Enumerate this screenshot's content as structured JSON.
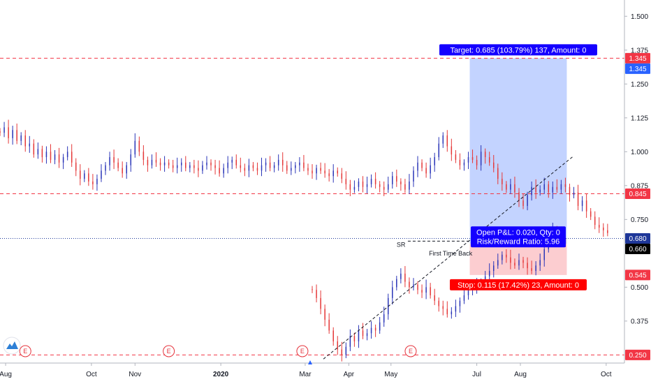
{
  "chart_data": {
    "type": "candlestick",
    "y_axis": {
      "ticks": [
        "1.500",
        "1.375",
        "1.250",
        "1.125",
        "1.000",
        "0.875",
        "0.750",
        "0.500",
        "0.375"
      ],
      "range": [
        0.22,
        1.56
      ]
    },
    "x_axis": {
      "ticks": [
        "Aug",
        "Oct",
        "Nov",
        "2020",
        "Mar",
        "Apr",
        "May",
        "Jul",
        "Aug",
        "Oct"
      ],
      "range": [
        "2019-07-28",
        "2020-10-14"
      ]
    },
    "price_lines": [
      {
        "value": 1.345,
        "label": "1.345",
        "style": "dashed",
        "color": "#f23645"
      },
      {
        "value": 0.845,
        "label": "0.845",
        "style": "dashed",
        "color": "#f23645"
      },
      {
        "value": 0.25,
        "label": "0.250",
        "style": "dashed",
        "color": "#f23645"
      },
      {
        "value": 0.68,
        "label": "0.680",
        "style": "dotted",
        "color": "#1e3799"
      }
    ],
    "last_price_tags": [
      {
        "value": 1.345,
        "label": "1.345",
        "color": "#2962ff"
      },
      {
        "value": 0.66,
        "label": "0.660",
        "color": "#000000"
      },
      {
        "value": 0.545,
        "label": "0.545",
        "color": "#f23645"
      }
    ],
    "position": {
      "entry": 0.66,
      "target": 1.345,
      "stop": 0.545,
      "start_date": "2020-06-26",
      "end_date": "2020-09-03",
      "target_label": "Target: 0.685 (103.79%) 137, Amount: 0",
      "stop_label": "Stop: 0.115 (17.42%) 23, Amount: 0",
      "pl_label": "Open P&L: 0.020, Qty: 0",
      "rr_label": "Risk/Reward Ratio: 5.96"
    },
    "annotations": [
      {
        "text": "SR",
        "date": "2020-05-10",
        "value": 0.67
      },
      {
        "text": "First Time Back",
        "date": "2020-05-27",
        "value": 0.64
      }
    ],
    "trendline": {
      "from": {
        "date": "2020-03-14",
        "value": 0.235
      },
      "to": {
        "date": "2020-09-08",
        "value": 0.985
      }
    },
    "support_line": {
      "from": {
        "date": "2020-05-13",
        "value": 0.67
      },
      "to": {
        "date": "2020-06-30",
        "value": 0.67
      }
    },
    "earnings_dates": [
      "2019-08-15",
      "2019-11-25",
      "2020-02-28",
      "2020-05-15"
    ],
    "earnings_label": "E",
    "up_color": "#2a35b8",
    "down_color": "#e53838",
    "segments": [
      {
        "start": "2019-07-28",
        "closes": [
          1.07,
          1.09,
          1.05,
          1.08,
          1.04,
          1.06,
          1.02,
          1.03,
          0.99,
          1.01,
          0.98,
          1.0,
          0.97,
          0.99,
          0.96,
          0.98,
          1.0,
          0.96,
          0.93,
          0.9,
          0.92,
          0.89,
          0.88,
          0.9,
          0.93,
          0.95,
          0.98,
          0.96,
          0.94,
          0.92,
          0.95,
          0.99,
          1.04,
          1.0,
          0.97,
          0.95,
          0.97,
          0.96,
          0.95,
          0.96,
          0.95,
          0.94,
          0.95,
          0.96,
          0.94,
          0.95,
          0.94,
          0.93,
          0.95,
          0.96,
          0.95,
          0.94,
          0.92,
          0.94,
          0.96,
          0.97,
          0.95,
          0.94,
          0.93,
          0.95,
          0.94,
          0.93,
          0.95,
          0.96,
          0.94,
          0.95,
          0.97,
          0.95,
          0.93,
          0.94,
          0.95,
          0.96,
          0.94,
          0.93,
          0.92,
          0.94,
          0.93,
          0.92,
          0.91,
          0.93,
          0.92,
          0.9,
          0.88,
          0.86,
          0.87,
          0.89,
          0.87,
          0.88,
          0.9,
          0.88,
          0.87,
          0.86,
          0.88,
          0.91,
          0.89,
          0.88,
          0.86,
          0.89,
          0.93,
          0.96,
          0.94,
          0.92,
          0.95,
          0.98,
          1.03,
          1.06,
          1.02,
          0.99,
          0.97,
          0.95,
          0.96,
          0.98,
          0.97,
          0.95,
          1.0,
          0.98,
          0.96,
          0.94,
          0.9,
          0.88,
          0.86,
          0.88,
          0.85,
          0.82,
          0.8,
          0.84,
          0.87,
          0.85,
          0.86,
          0.88,
          0.85,
          0.87,
          0.86,
          0.88,
          0.87,
          0.84,
          0.85,
          0.8,
          0.82,
          0.78,
          0.76,
          0.73,
          0.72,
          0.71,
          0.7
        ]
      },
      {
        "start": "2020-03-06",
        "closes": [
          0.49,
          0.46,
          0.42,
          0.38,
          0.34,
          0.3,
          0.27,
          0.25,
          0.28,
          0.32,
          0.3,
          0.34,
          0.32,
          0.33,
          0.35,
          0.34,
          0.37,
          0.4,
          0.46,
          0.5,
          0.53,
          0.55,
          0.52,
          0.5,
          0.51,
          0.49,
          0.48,
          0.5,
          0.47,
          0.45,
          0.43,
          0.42,
          0.4,
          0.41,
          0.43,
          0.45,
          0.47,
          0.49,
          0.5,
          0.51,
          0.52,
          0.54,
          0.56,
          0.58,
          0.6,
          0.62,
          0.61,
          0.59,
          0.58,
          0.6,
          0.59,
          0.57,
          0.56,
          0.58,
          0.6,
          0.64,
          0.69,
          0.71,
          0.7,
          0.68,
          0.66
        ]
      }
    ]
  }
}
